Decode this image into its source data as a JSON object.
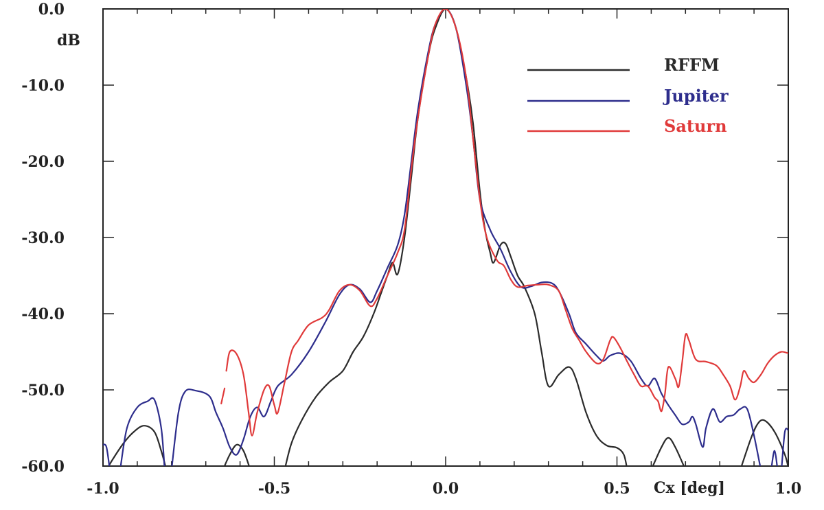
{
  "chart_data": {
    "type": "line",
    "xlabel": "Cx [deg]",
    "ylabel": "dB",
    "xlim": [
      -1.0,
      1.0
    ],
    "ylim": [
      -60.0,
      0.0
    ],
    "x_ticks": [
      -1.0,
      -0.5,
      0.0,
      0.5,
      1.0
    ],
    "x_tick_labels": [
      "-1.0",
      "-0.5",
      "0.0",
      "0.5",
      "1.0"
    ],
    "y_ticks": [
      0,
      -10,
      -20,
      -30,
      -40,
      -50,
      -60
    ],
    "y_tick_labels": [
      "0.0",
      "-10.0",
      "-20.0",
      "-30.0",
      "-40.0",
      "-50.0",
      "-60.0"
    ],
    "grid": false,
    "legend_position": "top-right",
    "series": [
      {
        "name": "RFFM",
        "color": "#2b2b2b",
        "segments": [
          [
            [
              -0.99,
              -60.5
            ],
            [
              -0.97,
              -59
            ],
            [
              -0.94,
              -57
            ],
            [
              -0.91,
              -55.5
            ],
            [
              -0.88,
              -54.7
            ],
            [
              -0.85,
              -55.5
            ],
            [
              -0.83,
              -58
            ],
            [
              -0.815,
              -60.5
            ]
          ],
          [
            [
              -0.65,
              -60.5
            ],
            [
              -0.63,
              -58.5
            ],
            [
              -0.61,
              -57.2
            ],
            [
              -0.59,
              -58
            ],
            [
              -0.57,
              -60.5
            ]
          ],
          [
            [
              -0.47,
              -60.5
            ],
            [
              -0.45,
              -57
            ],
            [
              -0.42,
              -54
            ],
            [
              -0.38,
              -51
            ],
            [
              -0.34,
              -49
            ],
            [
              -0.3,
              -47.5
            ],
            [
              -0.27,
              -45
            ],
            [
              -0.24,
              -43
            ],
            [
              -0.21,
              -40
            ],
            [
              -0.19,
              -37.5
            ],
            [
              -0.17,
              -35
            ],
            [
              -0.155,
              -33.3
            ],
            [
              -0.14,
              -34.8
            ],
            [
              -0.12,
              -30
            ],
            [
              -0.1,
              -22
            ],
            [
              -0.08,
              -14
            ],
            [
              -0.05,
              -6
            ],
            [
              -0.03,
              -2.5
            ],
            [
              0,
              0
            ],
            [
              0.03,
              -2.5
            ],
            [
              0.06,
              -9
            ],
            [
              0.08,
              -15
            ],
            [
              0.1,
              -24
            ],
            [
              0.115,
              -29
            ],
            [
              0.13,
              -32
            ],
            [
              0.14,
              -33.3
            ],
            [
              0.16,
              -31
            ],
            [
              0.175,
              -30.8
            ],
            [
              0.19,
              -32.5
            ],
            [
              0.21,
              -35
            ],
            [
              0.23,
              -36.5
            ],
            [
              0.26,
              -40
            ],
            [
              0.28,
              -45
            ],
            [
              0.3,
              -49.5
            ],
            [
              0.33,
              -48
            ],
            [
              0.36,
              -47
            ],
            [
              0.38,
              -48.5
            ],
            [
              0.41,
              -53
            ],
            [
              0.44,
              -56
            ],
            [
              0.47,
              -57.3
            ],
            [
              0.5,
              -57.6
            ],
            [
              0.52,
              -58.5
            ],
            [
              0.53,
              -60.5
            ]
          ],
          [
            [
              0.6,
              -60.5
            ],
            [
              0.63,
              -57.5
            ],
            [
              0.65,
              -56.3
            ],
            [
              0.67,
              -57.5
            ],
            [
              0.7,
              -60.5
            ]
          ],
          [
            [
              0.86,
              -60.5
            ],
            [
              0.89,
              -56.5
            ],
            [
              0.91,
              -54.5
            ],
            [
              0.93,
              -54
            ],
            [
              0.96,
              -55.5
            ],
            [
              0.99,
              -58.5
            ],
            [
              1.0,
              -60.2
            ]
          ]
        ]
      },
      {
        "name": "Jupiter",
        "color": "#2d2d8c",
        "segments": [
          [
            [
              -1.0,
              -57.2
            ],
            [
              -0.99,
              -57.5
            ],
            [
              -0.98,
              -60.5
            ]
          ],
          [
            [
              -0.95,
              -60.5
            ],
            [
              -0.93,
              -55
            ],
            [
              -0.9,
              -52.3
            ],
            [
              -0.87,
              -51.5
            ],
            [
              -0.85,
              -51.3
            ],
            [
              -0.83,
              -55
            ],
            [
              -0.82,
              -60.5
            ]
          ],
          [
            [
              -0.8,
              -60.5
            ],
            [
              -0.78,
              -53
            ],
            [
              -0.76,
              -50.2
            ],
            [
              -0.73,
              -50.1
            ],
            [
              -0.69,
              -50.8
            ],
            [
              -0.67,
              -53
            ],
            [
              -0.65,
              -55
            ],
            [
              -0.63,
              -57.5
            ],
            [
              -0.61,
              -58.5
            ],
            [
              -0.59,
              -56.5
            ],
            [
              -0.57,
              -53.5
            ],
            [
              -0.55,
              -52.3
            ],
            [
              -0.53,
              -53.5
            ],
            [
              -0.51,
              -51.5
            ],
            [
              -0.49,
              -49.5
            ],
            [
              -0.45,
              -48
            ],
            [
              -0.4,
              -45
            ],
            [
              -0.35,
              -41
            ],
            [
              -0.31,
              -37.5
            ],
            [
              -0.28,
              -36.2
            ],
            [
              -0.25,
              -36.8
            ],
            [
              -0.22,
              -38.5
            ],
            [
              -0.2,
              -37
            ],
            [
              -0.17,
              -34
            ],
            [
              -0.14,
              -31
            ],
            [
              -0.12,
              -27
            ],
            [
              -0.1,
              -20
            ],
            [
              -0.08,
              -13
            ],
            [
              -0.05,
              -5.5
            ],
            [
              -0.03,
              -2
            ],
            [
              0,
              0
            ],
            [
              0.03,
              -2.5
            ],
            [
              0.06,
              -10
            ],
            [
              0.08,
              -17
            ],
            [
              0.1,
              -25
            ],
            [
              0.13,
              -29
            ],
            [
              0.16,
              -31.5
            ],
            [
              0.19,
              -34.5
            ],
            [
              0.22,
              -36.5
            ],
            [
              0.25,
              -36.4
            ],
            [
              0.28,
              -35.9
            ],
            [
              0.31,
              -36
            ],
            [
              0.33,
              -37
            ],
            [
              0.36,
              -40
            ],
            [
              0.38,
              -42.5
            ],
            [
              0.41,
              -44
            ],
            [
              0.44,
              -45.5
            ],
            [
              0.46,
              -46.2
            ],
            [
              0.48,
              -45.5
            ],
            [
              0.51,
              -45.2
            ],
            [
              0.54,
              -46.2
            ],
            [
              0.57,
              -48.5
            ],
            [
              0.59,
              -49.5
            ],
            [
              0.61,
              -48.5
            ],
            [
              0.63,
              -50.5
            ],
            [
              0.65,
              -52
            ],
            [
              0.67,
              -53.3
            ],
            [
              0.69,
              -54.5
            ],
            [
              0.71,
              -54.2
            ],
            [
              0.72,
              -53.5
            ],
            [
              0.73,
              -54.5
            ],
            [
              0.75,
              -57.5
            ],
            [
              0.76,
              -55
            ],
            [
              0.78,
              -52.5
            ],
            [
              0.8,
              -54.2
            ],
            [
              0.82,
              -53.5
            ],
            [
              0.84,
              -53.3
            ],
            [
              0.86,
              -52.5
            ],
            [
              0.88,
              -52.5
            ],
            [
              0.9,
              -56
            ],
            [
              0.92,
              -60.5
            ]
          ],
          [
            [
              0.95,
              -60.5
            ],
            [
              0.96,
              -58
            ],
            [
              0.97,
              -61
            ]
          ],
          [
            [
              0.98,
              -60.5
            ],
            [
              0.99,
              -55.5
            ],
            [
              1.0,
              -55.3
            ]
          ]
        ]
      },
      {
        "name": "Saturn",
        "color": "#e03a3a",
        "segments": [
          [
            [
              -0.655,
              -51.8
            ],
            [
              -0.645,
              -49.8
            ]
          ],
          [
            [
              -0.64,
              -47.5
            ],
            [
              -0.63,
              -45
            ],
            [
              -0.61,
              -45.3
            ],
            [
              -0.59,
              -48
            ],
            [
              -0.575,
              -53
            ],
            [
              -0.565,
              -56
            ],
            [
              -0.55,
              -53
            ],
            [
              -0.53,
              -50
            ],
            [
              -0.515,
              -49.5
            ],
            [
              -0.5,
              -52
            ],
            [
              -0.49,
              -53
            ],
            [
              -0.47,
              -49
            ],
            [
              -0.45,
              -45
            ],
            [
              -0.43,
              -43.5
            ],
            [
              -0.4,
              -41.5
            ],
            [
              -0.36,
              -40.5
            ],
            [
              -0.34,
              -39.5
            ],
            [
              -0.31,
              -37
            ],
            [
              -0.28,
              -36.2
            ],
            [
              -0.25,
              -37
            ],
            [
              -0.22,
              -39
            ],
            [
              -0.2,
              -38
            ],
            [
              -0.17,
              -35
            ],
            [
              -0.14,
              -32
            ],
            [
              -0.12,
              -29
            ],
            [
              -0.1,
              -21
            ],
            [
              -0.08,
              -14
            ],
            [
              -0.05,
              -6
            ],
            [
              -0.03,
              -2
            ],
            [
              0,
              0
            ],
            [
              0.03,
              -2.5
            ],
            [
              0.06,
              -9
            ],
            [
              0.08,
              -17
            ],
            [
              0.1,
              -25
            ],
            [
              0.12,
              -30
            ],
            [
              0.15,
              -33
            ],
            [
              0.17,
              -33.7
            ],
            [
              0.19,
              -35.5
            ],
            [
              0.21,
              -36.5
            ],
            [
              0.24,
              -36.3
            ],
            [
              0.27,
              -36.2
            ],
            [
              0.3,
              -36.2
            ],
            [
              0.33,
              -37
            ],
            [
              0.35,
              -39.5
            ],
            [
              0.37,
              -42
            ],
            [
              0.39,
              -43.5
            ],
            [
              0.41,
              -45
            ],
            [
              0.44,
              -46.5
            ],
            [
              0.46,
              -46
            ],
            [
              0.48,
              -43.5
            ],
            [
              0.49,
              -43.1
            ],
            [
              0.51,
              -44.5
            ],
            [
              0.53,
              -46.3
            ],
            [
              0.55,
              -48
            ],
            [
              0.57,
              -49.5
            ],
            [
              0.59,
              -49.5
            ],
            [
              0.61,
              -51
            ],
            [
              0.62,
              -51.5
            ],
            [
              0.63,
              -52.8
            ],
            [
              0.64,
              -50.5
            ],
            [
              0.65,
              -47
            ],
            [
              0.67,
              -48.5
            ],
            [
              0.68,
              -49.6
            ],
            [
              0.69,
              -46.5
            ],
            [
              0.7,
              -42.8
            ],
            [
              0.71,
              -43.5
            ],
            [
              0.73,
              -46
            ],
            [
              0.76,
              -46.3
            ],
            [
              0.79,
              -46.8
            ],
            [
              0.81,
              -48
            ],
            [
              0.83,
              -49.5
            ],
            [
              0.845,
              -51.3
            ],
            [
              0.86,
              -49.5
            ],
            [
              0.87,
              -47.5
            ],
            [
              0.885,
              -48.5
            ],
            [
              0.9,
              -49
            ],
            [
              0.92,
              -48
            ],
            [
              0.94,
              -46.5
            ],
            [
              0.96,
              -45.5
            ],
            [
              0.98,
              -45
            ],
            [
              1.0,
              -45.2
            ]
          ]
        ]
      }
    ]
  }
}
